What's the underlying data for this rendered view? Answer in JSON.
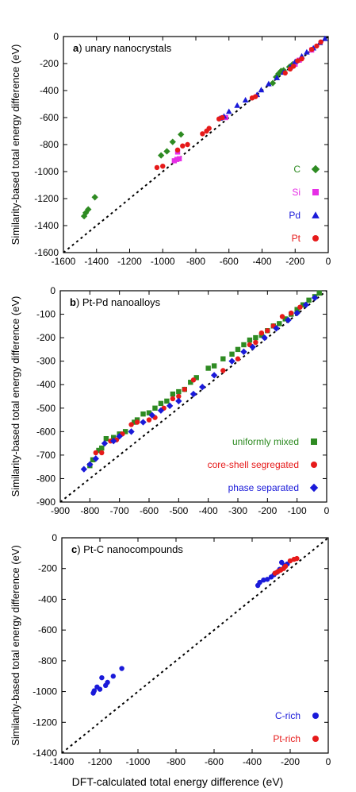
{
  "figure": {
    "xlabel": "DFT-calculated total energy difference (eV)"
  },
  "chart_data": [
    {
      "type": "scatter",
      "panel_letter": "a",
      "title": ") unary nanocrystals",
      "ylabel": "Similarity-based total energy difference (eV)",
      "xlim": [
        -1600,
        0
      ],
      "ylim": [
        -1600,
        0
      ],
      "xticks": [
        -1600,
        -1400,
        -1200,
        -1000,
        -800,
        -600,
        -400,
        -200,
        0
      ],
      "yticks": [
        0,
        -200,
        -400,
        -600,
        -800,
        -1000,
        -1200,
        -1400,
        -1600
      ],
      "parity_line": true,
      "legend_position": "bottom-right",
      "series": [
        {
          "name": "C",
          "marker": "diamond",
          "color": "#2e8b22",
          "points": [
            [
              -1475,
              -1330
            ],
            [
              -1465,
              -1305
            ],
            [
              -1450,
              -1280
            ],
            [
              -1410,
              -1190
            ],
            [
              -1010,
              -880
            ],
            [
              -975,
              -850
            ],
            [
              -940,
              -780
            ],
            [
              -890,
              -725
            ],
            [
              -335,
              -345
            ],
            [
              -315,
              -300
            ],
            [
              -300,
              -275
            ],
            [
              -285,
              -255
            ],
            [
              -270,
              -250
            ],
            [
              -235,
              -225
            ],
            [
              -215,
              -205
            ]
          ]
        },
        {
          "name": "Si",
          "marker": "square",
          "color": "#e62ee6",
          "points": [
            [
              -930,
              -920
            ],
            [
              -915,
              -910
            ],
            [
              -900,
              -905
            ],
            [
              -910,
              -855
            ],
            [
              -620,
              -600
            ],
            [
              -200,
              -205
            ],
            [
              -175,
              -175
            ],
            [
              -100,
              -100
            ]
          ]
        },
        {
          "name": "Pd",
          "marker": "triangle",
          "color": "#1a1ad9",
          "points": [
            [
              -655,
              -605
            ],
            [
              -630,
              -590
            ],
            [
              -600,
              -555
            ],
            [
              -550,
              -510
            ],
            [
              -500,
              -470
            ],
            [
              -430,
              -430
            ],
            [
              -405,
              -395
            ],
            [
              -360,
              -350
            ],
            [
              -310,
              -305
            ],
            [
              -270,
              -265
            ],
            [
              -230,
              -225
            ],
            [
              -200,
              -185
            ],
            [
              -160,
              -145
            ],
            [
              -130,
              -115
            ],
            [
              -90,
              -85
            ],
            [
              -50,
              -45
            ],
            [
              -20,
              -15
            ]
          ]
        },
        {
          "name": "Pt",
          "marker": "circle",
          "color": "#e61a1a",
          "points": [
            [
              -1035,
              -970
            ],
            [
              -1000,
              -960
            ],
            [
              -910,
              -840
            ],
            [
              -880,
              -810
            ],
            [
              -850,
              -800
            ],
            [
              -760,
              -720
            ],
            [
              -735,
              -700
            ],
            [
              -720,
              -680
            ],
            [
              -660,
              -610
            ],
            [
              -640,
              -600
            ],
            [
              -460,
              -455
            ],
            [
              -440,
              -445
            ],
            [
              -260,
              -270
            ],
            [
              -230,
              -240
            ],
            [
              -210,
              -220
            ],
            [
              -185,
              -180
            ],
            [
              -160,
              -165
            ],
            [
              -100,
              -95
            ],
            [
              -70,
              -70
            ],
            [
              -45,
              -40
            ]
          ]
        }
      ]
    },
    {
      "type": "scatter",
      "panel_letter": "b",
      "title": ") Pt-Pd nanoalloys",
      "ylabel": "Similarity-based total energy difference (eV)",
      "xlim": [
        -900,
        0
      ],
      "ylim": [
        -900,
        0
      ],
      "xticks": [
        -900,
        -800,
        -700,
        -600,
        -500,
        -400,
        -300,
        -200,
        -100,
        0
      ],
      "yticks": [
        0,
        -100,
        -200,
        -300,
        -400,
        -500,
        -600,
        -700,
        -800,
        -900
      ],
      "parity_line": true,
      "legend_position": "bottom-right",
      "series": [
        {
          "name": "uniformly mixed",
          "marker": "square",
          "color": "#2e8b22",
          "points": [
            [
              -800,
              -745
            ],
            [
              -790,
              -720
            ],
            [
              -770,
              -680
            ],
            [
              -760,
              -670
            ],
            [
              -745,
              -630
            ],
            [
              -720,
              -625
            ],
            [
              -700,
              -610
            ],
            [
              -680,
              -600
            ],
            [
              -650,
              -560
            ],
            [
              -640,
              -550
            ],
            [
              -620,
              -525
            ],
            [
              -600,
              -520
            ],
            [
              -580,
              -500
            ],
            [
              -560,
              -480
            ],
            [
              -540,
              -470
            ],
            [
              -520,
              -440
            ],
            [
              -500,
              -430
            ],
            [
              -480,
              -420
            ],
            [
              -460,
              -390
            ],
            [
              -440,
              -370
            ],
            [
              -400,
              -330
            ],
            [
              -380,
              -320
            ],
            [
              -350,
              -290
            ],
            [
              -320,
              -270
            ],
            [
              -300,
              -250
            ],
            [
              -280,
              -230
            ],
            [
              -260,
              -210
            ],
            [
              -240,
              -200
            ],
            [
              -220,
              -190
            ],
            [
              -200,
              -170
            ],
            [
              -180,
              -150
            ],
            [
              -160,
              -140
            ],
            [
              -140,
              -120
            ],
            [
              -120,
              -100
            ],
            [
              -100,
              -80
            ],
            [
              -80,
              -60
            ],
            [
              -60,
              -40
            ],
            [
              -40,
              -25
            ],
            [
              -25,
              -10
            ]
          ]
        },
        {
          "name": "core-shell segregated",
          "marker": "circle",
          "color": "#e61a1a",
          "points": [
            [
              -780,
              -690
            ],
            [
              -760,
              -690
            ],
            [
              -730,
              -640
            ],
            [
              -710,
              -635
            ],
            [
              -690,
              -610
            ],
            [
              -660,
              -570
            ],
            [
              -640,
              -560
            ],
            [
              -600,
              -550
            ],
            [
              -580,
              -540
            ],
            [
              -550,
              -500
            ],
            [
              -520,
              -460
            ],
            [
              -500,
              -450
            ],
            [
              -480,
              -420
            ],
            [
              -450,
              -380
            ],
            [
              -350,
              -340
            ],
            [
              -300,
              -290
            ],
            [
              -260,
              -230
            ],
            [
              -240,
              -220
            ],
            [
              -220,
              -180
            ],
            [
              -200,
              -170
            ],
            [
              -180,
              -150
            ],
            [
              -150,
              -110
            ],
            [
              -120,
              -95
            ],
            [
              -90,
              -70
            ]
          ]
        },
        {
          "name": "phase separated",
          "marker": "diamond",
          "color": "#1a1ad9",
          "points": [
            [
              -820,
              -760
            ],
            [
              -800,
              -740
            ],
            [
              -780,
              -715
            ],
            [
              -750,
              -650
            ],
            [
              -720,
              -640
            ],
            [
              -700,
              -620
            ],
            [
              -660,
              -600
            ],
            [
              -620,
              -560
            ],
            [
              -590,
              -530
            ],
            [
              -560,
              -510
            ],
            [
              -530,
              -490
            ],
            [
              -500,
              -470
            ],
            [
              -450,
              -440
            ],
            [
              -420,
              -410
            ],
            [
              -380,
              -360
            ],
            [
              -320,
              -300
            ],
            [
              -280,
              -260
            ],
            [
              -250,
              -240
            ],
            [
              -210,
              -200
            ],
            [
              -170,
              -160
            ],
            [
              -130,
              -125
            ],
            [
              -100,
              -95
            ],
            [
              -70,
              -60
            ],
            [
              -40,
              -30
            ]
          ]
        }
      ]
    },
    {
      "type": "scatter",
      "panel_letter": "c",
      "title": ") Pt-C nanocompounds",
      "ylabel": "Similarity-based total energy difference (eV)",
      "xlim": [
        -1400,
        0
      ],
      "ylim": [
        -1400,
        0
      ],
      "xticks": [
        -1400,
        -1200,
        -1000,
        -800,
        -600,
        -400,
        -200,
        0
      ],
      "yticks": [
        0,
        -200,
        -400,
        -600,
        -800,
        -1000,
        -1200,
        -1400
      ],
      "parity_line": true,
      "legend_position": "bottom-right",
      "series": [
        {
          "name": "C-rich",
          "marker": "circle",
          "color": "#1a1ad9",
          "points": [
            [
              -1235,
              -1010
            ],
            [
              -1230,
              -995
            ],
            [
              -1215,
              -970
            ],
            [
              -1200,
              -985
            ],
            [
              -1190,
              -910
            ],
            [
              -1170,
              -960
            ],
            [
              -1160,
              -940
            ],
            [
              -1130,
              -900
            ],
            [
              -1085,
              -850
            ],
            [
              -370,
              -310
            ],
            [
              -360,
              -290
            ],
            [
              -340,
              -275
            ],
            [
              -320,
              -270
            ],
            [
              -300,
              -255
            ],
            [
              -285,
              -240
            ],
            [
              -270,
              -225
            ],
            [
              -255,
              -205
            ],
            [
              -245,
              -160
            ],
            [
              -230,
              -180
            ],
            [
              -215,
              -170
            ]
          ]
        },
        {
          "name": "Pt-rich",
          "marker": "circle",
          "color": "#e61a1a",
          "points": [
            [
              -280,
              -230
            ],
            [
              -265,
              -220
            ],
            [
              -250,
              -210
            ],
            [
              -235,
              -200
            ],
            [
              -225,
              -185
            ],
            [
              -200,
              -150
            ],
            [
              -180,
              -140
            ],
            [
              -165,
              -135
            ]
          ]
        }
      ]
    }
  ]
}
